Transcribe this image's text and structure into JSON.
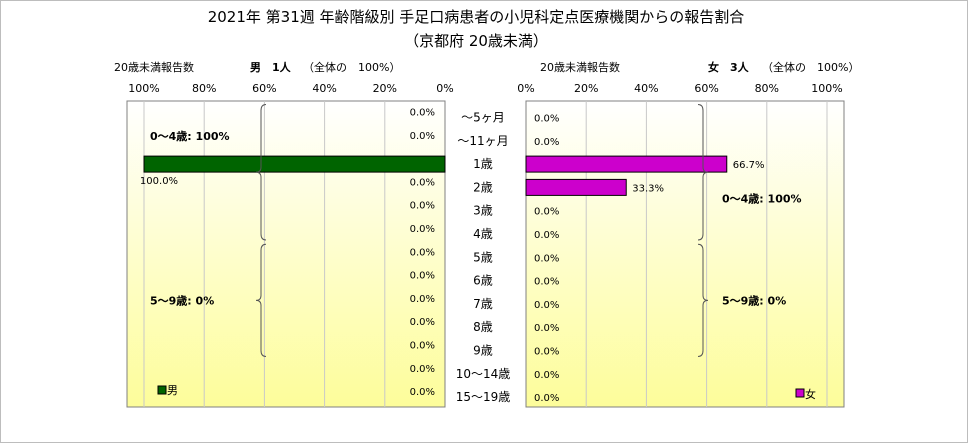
{
  "title": {
    "line1": "2021年 第31週 年齢階級別 手足口病患者の小児科定点医療機関からの報告割合",
    "line2": "（京都府 20歳未満）"
  },
  "headers": {
    "left_prefix": "20歳未満報告数",
    "left_count": "男　1人",
    "left_suffix": "（全体の　100%）",
    "right_prefix": "20歳未満報告数",
    "right_count": "女　3人",
    "right_suffix": "（全体の　100%）"
  },
  "colors": {
    "male": "#006400",
    "female": "#cc00cc",
    "bg_top": "#ffffff",
    "bg_bottom": "#fdfd9a"
  },
  "chart_data": {
    "type": "bar",
    "orientation": "horizontal-butterfly",
    "categories": [
      "～5ヶ月",
      "～11ヶ月",
      "1歳",
      "2歳",
      "3歳",
      "4歳",
      "5歳",
      "6歳",
      "7歳",
      "8歳",
      "9歳",
      "10～14歳",
      "15～19歳"
    ],
    "series": [
      {
        "name": "男",
        "side": "left",
        "values": [
          0.0,
          0.0,
          100.0,
          0.0,
          0.0,
          0.0,
          0.0,
          0.0,
          0.0,
          0.0,
          0.0,
          0.0,
          0.0
        ],
        "labels": [
          "0.0%",
          "0.0%",
          "100.0%",
          "0.0%",
          "0.0%",
          "0.0%",
          "0.0%",
          "0.0%",
          "0.0%",
          "0.0%",
          "0.0%",
          "0.0%",
          "0.0%"
        ]
      },
      {
        "name": "女",
        "side": "right",
        "values": [
          0.0,
          0.0,
          66.7,
          33.3,
          0.0,
          0.0,
          0.0,
          0.0,
          0.0,
          0.0,
          0.0,
          0.0,
          0.0
        ],
        "labels": [
          "0.0%",
          "0.0%",
          "66.7%",
          "33.3%",
          "0.0%",
          "0.0%",
          "0.0%",
          "0.0%",
          "0.0%",
          "0.0%",
          "0.0%",
          "0.0%",
          "0.0%"
        ]
      }
    ],
    "xlim": [
      0,
      100
    ],
    "left_ticks": [
      "100%",
      "80%",
      "60%",
      "40%",
      "20%",
      "0%"
    ],
    "right_ticks": [
      "0%",
      "20%",
      "40%",
      "60%",
      "80%",
      "100%"
    ],
    "grid": true,
    "legend_position": "bottom-left / bottom-right",
    "groups": {
      "left": [
        {
          "label": "0～4歳: 100%",
          "range": [
            "～5ヶ月",
            "4歳"
          ]
        },
        {
          "label": "5～9歳: 0%",
          "range": [
            "5歳",
            "9歳"
          ]
        }
      ],
      "right": [
        {
          "label": "0～4歳: 100%",
          "range": [
            "～5ヶ月",
            "4歳"
          ]
        },
        {
          "label": "5～9歳: 0%",
          "range": [
            "5歳",
            "9歳"
          ]
        }
      ]
    }
  }
}
